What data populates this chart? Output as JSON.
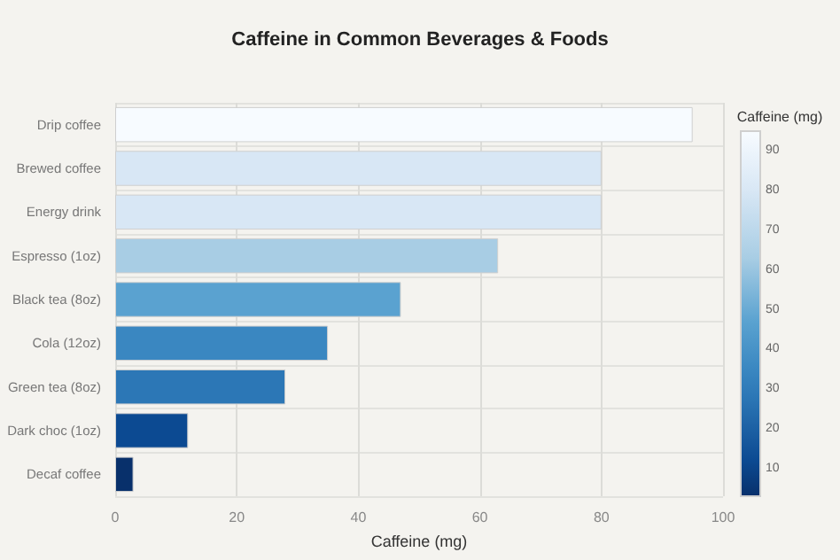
{
  "chart_data": {
    "type": "bar",
    "orientation": "horizontal",
    "title": "Caffeine in Common Beverages & Foods",
    "xlabel": "Caffeine (mg)",
    "clabel": "Caffeine (mg)",
    "categories": [
      "Drip coffee",
      "Brewed coffee",
      "Energy drink",
      "Espresso (1oz)",
      "Black tea (8oz)",
      "Cola (12oz)",
      "Green tea (8oz)",
      "Dark choc (1oz)",
      "Decaf coffee"
    ],
    "values": [
      95,
      80,
      80,
      63,
      47,
      35,
      28,
      12,
      3
    ],
    "colors": [
      "#f7fbff",
      "#d8e7f5",
      "#d8e7f5",
      "#a8cde4",
      "#5aa2d0",
      "#3a87c1",
      "#2c77b6",
      "#0c4a92",
      "#08306b"
    ],
    "xlim": [
      0,
      100
    ],
    "xticks": [
      0,
      20,
      40,
      60,
      80,
      100
    ],
    "clim": [
      3,
      95
    ],
    "cticks": [
      10,
      20,
      30,
      40,
      50,
      60,
      70,
      80,
      90
    ],
    "grid": true
  }
}
